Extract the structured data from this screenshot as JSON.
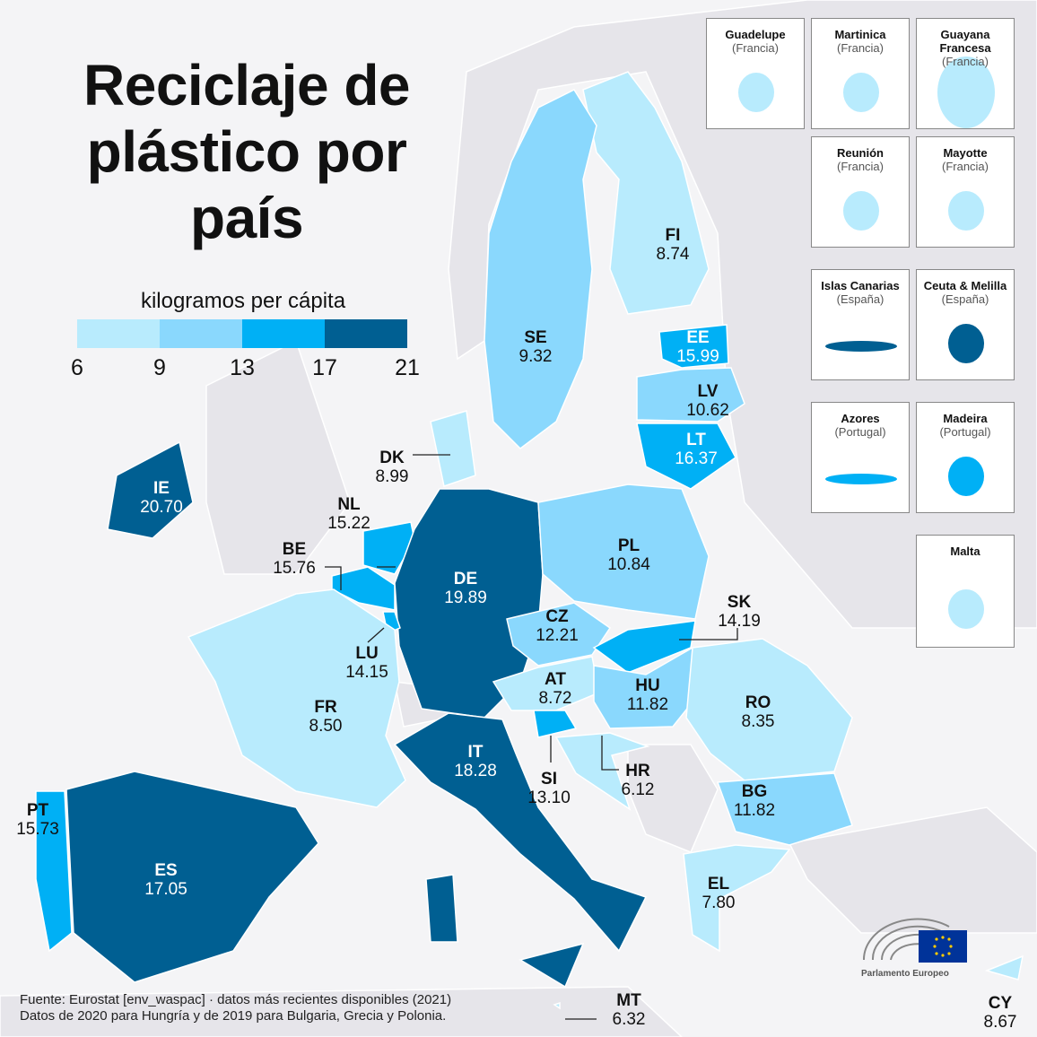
{
  "title": "Reciclaje de plástico por país",
  "title_lines": [
    "Reciclaje de",
    "plástico por",
    "país"
  ],
  "legend": {
    "title": "kilogramos per cápita",
    "ticks": [
      "6",
      "9",
      "13",
      "17",
      "21"
    ],
    "colors": [
      "#b8ebfd",
      "#8ad8fd",
      "#00b0f5",
      "#005f92"
    ]
  },
  "countries": [
    {
      "code": "FI",
      "value": "8.74"
    },
    {
      "code": "SE",
      "value": "9.32"
    },
    {
      "code": "EE",
      "value": "15.99"
    },
    {
      "code": "LV",
      "value": "10.62"
    },
    {
      "code": "LT",
      "value": "16.37"
    },
    {
      "code": "DK",
      "value": "8.99"
    },
    {
      "code": "IE",
      "value": "20.70"
    },
    {
      "code": "NL",
      "value": "15.22"
    },
    {
      "code": "BE",
      "value": "15.76"
    },
    {
      "code": "DE",
      "value": "19.89"
    },
    {
      "code": "PL",
      "value": "10.84"
    },
    {
      "code": "CZ",
      "value": "12.21"
    },
    {
      "code": "SK",
      "value": "14.19"
    },
    {
      "code": "LU",
      "value": "14.15"
    },
    {
      "code": "AT",
      "value": "8.72"
    },
    {
      "code": "HU",
      "value": "11.82"
    },
    {
      "code": "FR",
      "value": "8.50"
    },
    {
      "code": "RO",
      "value": "8.35"
    },
    {
      "code": "IT",
      "value": "18.28"
    },
    {
      "code": "SI",
      "value": "13.10"
    },
    {
      "code": "HR",
      "value": "6.12"
    },
    {
      "code": "BG",
      "value": "11.82"
    },
    {
      "code": "PT",
      "value": "15.73"
    },
    {
      "code": "ES",
      "value": "17.05"
    },
    {
      "code": "EL",
      "value": "7.80"
    },
    {
      "code": "MT",
      "value": "6.32"
    },
    {
      "code": "CY",
      "value": "8.67"
    }
  ],
  "insets": [
    {
      "name": "Guadelupe",
      "country": "(Francia)"
    },
    {
      "name": "Martinica",
      "country": "(Francia)"
    },
    {
      "name": "Guayana Francesa",
      "country": "(Francia)"
    },
    {
      "name": "Reunión",
      "country": "(Francia)"
    },
    {
      "name": "Mayotte",
      "country": "(Francia)"
    },
    {
      "name": "Islas Canarias",
      "country": "(España)"
    },
    {
      "name": "Ceuta & Melilla",
      "country": "(España)"
    },
    {
      "name": "Azores",
      "country": "(Portugal)"
    },
    {
      "name": "Madeira",
      "country": "(Portugal)"
    },
    {
      "name": "Malta",
      "country": ""
    }
  ],
  "source": {
    "line1": "Fuente: Eurostat [env_waspac] · datos más recientes disponibles (2021)",
    "line2": "Datos de 2020 para Hungría y de 2019 para Bulgaria, Grecia y Polonia."
  },
  "logo": {
    "text": "Parlamento Europeo"
  }
}
